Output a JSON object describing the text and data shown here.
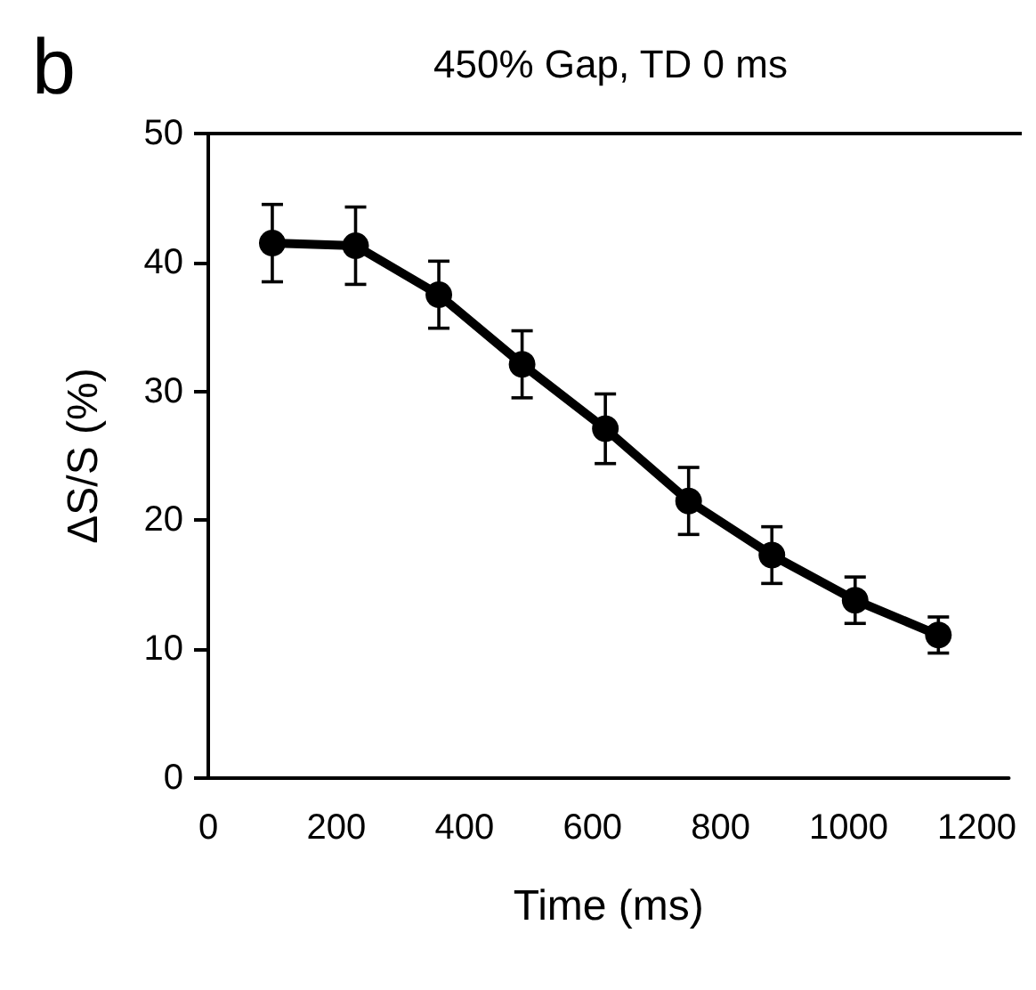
{
  "chart_data": {
    "type": "line",
    "title": "450% Gap, TD 0 ms",
    "annotations": [
      "b"
    ],
    "xlabel": "Time (ms)",
    "ylabel": "ΔS/S (%)",
    "x": [
      100,
      230,
      360,
      490,
      620,
      750,
      880,
      1010,
      1140
    ],
    "series": [
      {
        "color": "#000000",
        "values": [
          41.5,
          41.3,
          37.5,
          32.1,
          27.1,
          21.5,
          17.3,
          13.8,
          11.1
        ],
        "errors": [
          3.0,
          3.0,
          2.6,
          2.6,
          2.7,
          2.6,
          2.2,
          1.8,
          1.4
        ]
      }
    ],
    "xlim": [
      0,
      1250
    ],
    "xticks": [
      0,
      200,
      400,
      600,
      800,
      1000,
      1200
    ],
    "ylim": [
      0,
      50
    ],
    "yticks": [
      0,
      10,
      20,
      30,
      40,
      50
    ],
    "grid": false,
    "marker": "circle",
    "line_style": "solid"
  }
}
